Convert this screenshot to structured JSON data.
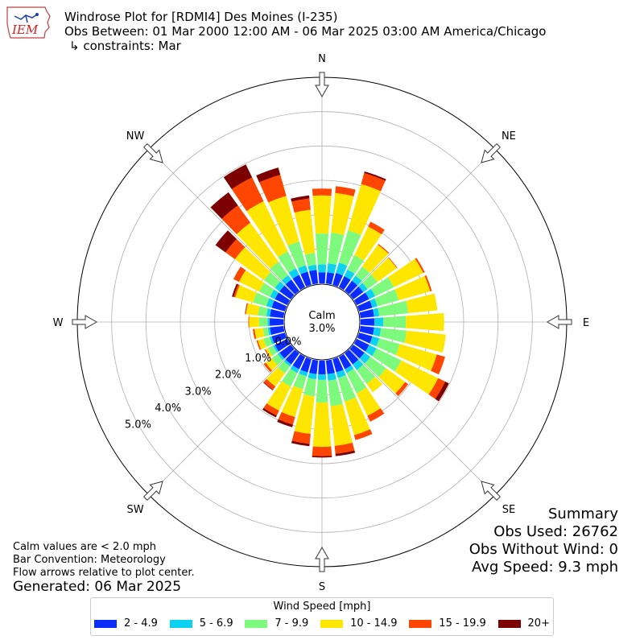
{
  "header": {
    "line1": "Windrose Plot for [RDMI4] Des Moines (I-235)",
    "line2": "Obs Between: 01 Mar 2000 12:00 AM - 06 Mar 2025 03:00 AM America/Chicago",
    "line3": "↳ constraints: Mar"
  },
  "logo": {
    "text": "IEM"
  },
  "notes": {
    "calm": "Calm values are < 2.0 mph",
    "convention": "Bar Convention: Meteorology",
    "flow": "Flow arrows relative to plot center.",
    "generated": "Generated: 06 Mar 2025"
  },
  "summary": {
    "title": "Summary",
    "obs_used": "Obs Used: 26762",
    "obs_without_wind": "Obs Without Wind: 0",
    "avg_speed": "Avg Speed: 9.3 mph"
  },
  "colors": {
    "bins": [
      "#0a2cff",
      "#0ad2f0",
      "#7dfa7d",
      "#ffe600",
      "#ff4600",
      "#7d0000"
    ],
    "grid": "#b0b0b0"
  },
  "chart_data": {
    "type": "windrose",
    "calm_label": "Calm",
    "calm_value": "3.0%",
    "compass_labels": [
      {
        "label": "N",
        "deg": 0
      },
      {
        "label": "NE",
        "deg": 45
      },
      {
        "label": "E",
        "deg": 90
      },
      {
        "label": "SE",
        "deg": 135
      },
      {
        "label": "S",
        "deg": 180
      },
      {
        "label": "SW",
        "deg": 225
      },
      {
        "label": "W",
        "deg": 270
      },
      {
        "label": "NW",
        "deg": 315
      }
    ],
    "radial_ticks": [
      "0.0%",
      "1.0%",
      "2.0%",
      "3.0%",
      "4.0%",
      "5.0%"
    ],
    "radial_max": 6.0,
    "legend_title": "Wind Speed [mph]",
    "bins": [
      "2 - 4.9",
      "5 - 6.9",
      "7 - 9.9",
      "10 - 14.9",
      "15 - 19.9",
      "20+"
    ],
    "directions_deg": [
      0,
      10,
      20,
      30,
      40,
      50,
      60,
      70,
      80,
      90,
      100,
      110,
      120,
      130,
      140,
      150,
      160,
      170,
      180,
      190,
      200,
      210,
      220,
      230,
      240,
      250,
      260,
      270,
      280,
      290,
      300,
      310,
      320,
      330,
      340,
      350
    ],
    "cumulative": [
      [
        0.32,
        0.55,
        1.45,
        2.56,
        2.76,
        2.76
      ],
      [
        0.33,
        0.59,
        1.49,
        2.65,
        2.85,
        2.85
      ],
      [
        0.36,
        0.67,
        1.65,
        3.05,
        3.38,
        3.43
      ],
      [
        0.36,
        0.57,
        1.04,
        1.96,
        2.12,
        2.12
      ],
      [
        0.36,
        0.54,
        0.87,
        1.65,
        1.68,
        1.68
      ],
      [
        0.36,
        0.51,
        0.87,
        1.56,
        1.58,
        1.58
      ],
      [
        0.4,
        0.6,
        1.2,
        2.15,
        2.2,
        2.2
      ],
      [
        0.4,
        0.55,
        1.2,
        2.15,
        2.2,
        2.2
      ],
      [
        0.4,
        0.55,
        1.4,
        2.25,
        2.25,
        2.25
      ],
      [
        0.4,
        0.66,
        1.32,
        2.43,
        2.43,
        2.43
      ],
      [
        0.4,
        0.6,
        1.35,
        2.5,
        2.5,
        2.5
      ],
      [
        0.4,
        0.61,
        1.23,
        2.35,
        2.6,
        2.6
      ],
      [
        0.4,
        0.64,
        1.44,
        2.63,
        2.86,
        2.98
      ],
      [
        0.4,
        0.61,
        1.18,
        1.86,
        1.97,
        1.97
      ],
      [
        0.4,
        0.6,
        1.1,
        1.4,
        1.4,
        1.4
      ],
      [
        0.4,
        0.52,
        1.18,
        1.91,
        2.1,
        2.1
      ],
      [
        0.4,
        0.57,
        1.28,
        2.3,
        2.45,
        2.45
      ],
      [
        0.4,
        0.59,
        1.34,
        2.5,
        2.73,
        2.8
      ],
      [
        0.4,
        0.56,
        1.22,
        2.51,
        2.78,
        2.82
      ],
      [
        0.4,
        0.55,
        1.05,
        2.15,
        2.44,
        2.51
      ],
      [
        0.4,
        0.52,
        0.91,
        1.75,
        1.98,
        2.06
      ],
      [
        0.4,
        0.52,
        0.96,
        1.74,
        1.9,
        1.96
      ],
      [
        0.4,
        0.47,
        0.72,
        1.19,
        1.31,
        1.33
      ],
      [
        0.4,
        0.47,
        0.68,
        0.9,
        0.97,
        0.97
      ],
      [
        0.4,
        0.46,
        0.62,
        0.7,
        0.73,
        0.73
      ],
      [
        0.4,
        0.46,
        0.65,
        0.82,
        0.86,
        0.86
      ],
      [
        0.4,
        0.46,
        0.6,
        0.85,
        0.9,
        0.9
      ],
      [
        0.4,
        0.46,
        0.71,
        1.0,
        1.02,
        1.02
      ],
      [
        0.4,
        0.5,
        0.75,
        1.1,
        1.12,
        1.13
      ],
      [
        0.4,
        0.56,
        0.96,
        1.5,
        1.55,
        1.6
      ],
      [
        0.4,
        0.56,
        0.91,
        1.56,
        1.74,
        1.74
      ],
      [
        0.4,
        0.57,
        0.96,
        2.0,
        2.34,
        2.7
      ],
      [
        0.4,
        0.56,
        1.04,
        2.44,
        3.06,
        3.53
      ],
      [
        0.4,
        0.61,
        1.16,
        2.78,
        3.55,
        3.97
      ],
      [
        0.4,
        0.59,
        1.31,
        2.69,
        3.33,
        3.55
      ],
      [
        0.4,
        0.55,
        0.9,
        2.16,
        2.49,
        2.58
      ]
    ]
  }
}
